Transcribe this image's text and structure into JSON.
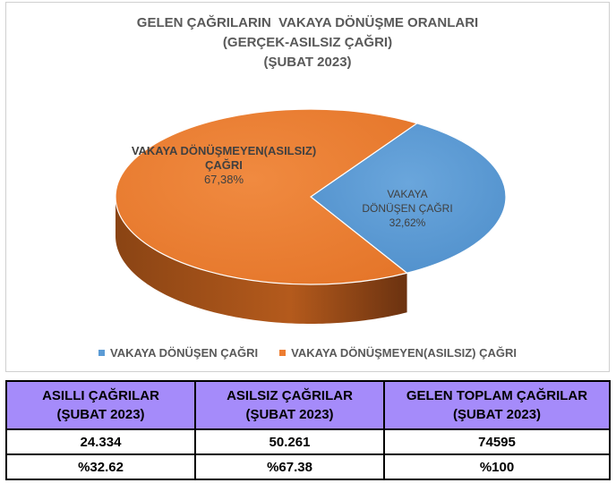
{
  "chart_data": {
    "type": "pie",
    "title_lines": [
      "GELEN ÇAĞRILARIN  VAKAYA DÖNÜŞME ORANLARI",
      "(GERÇEK-ASILSIZ ÇAĞRI)",
      "(ŞUBAT 2023)"
    ],
    "slices": [
      {
        "name": "VAKAYA DÖNÜŞEN ÇAĞRI",
        "value": 32.62,
        "label_lines": [
          "VAKAYA",
          "DÖNÜŞEN ÇAĞRI",
          "32,62%"
        ],
        "color": "#5b9bd5",
        "side_color": "#1f3a5c"
      },
      {
        "name": "VAKAYA DÖNÜŞMEYEN(ASILSIZ) ÇAĞRI",
        "value": 67.38,
        "label_lines": [
          "VAKAYA DÖNÜŞMEYEN(ASILSIZ)",
          "ÇAĞRI",
          "67,38%"
        ],
        "color": "#ed7d31",
        "side_color": "#7a3a10"
      }
    ],
    "legend": {
      "placement": "bottom",
      "entries": [
        "VAKAYA DÖNÜŞEN ÇAĞRI",
        "VAKAYA DÖNÜŞMEYEN(ASILSIZ) ÇAĞRI"
      ]
    }
  },
  "table": {
    "headers": [
      [
        "ASILLI ÇAĞRILAR",
        "(ŞUBAT 2023)"
      ],
      [
        "ASILSIZ ÇAĞRILAR",
        "(ŞUBAT 2023)"
      ],
      [
        "GELEN TOPLAM ÇAĞRILAR",
        "(ŞUBAT 2023)"
      ]
    ],
    "rows": [
      [
        "24.334",
        "50.261",
        "74595"
      ],
      [
        "%32.62",
        "%67.38",
        "%100"
      ]
    ],
    "header_color": "#a58bfa"
  }
}
